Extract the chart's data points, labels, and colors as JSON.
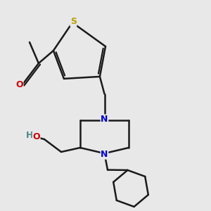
{
  "background_color": "#e8e8e8",
  "bond_color": "#1a1a1a",
  "S_color": "#b8a000",
  "O_color": "#cc0000",
  "N_color": "#0000cc",
  "H_color": "#4a8888",
  "line_width": 1.8,
  "figsize": [
    3.0,
    3.0
  ],
  "dpi": 100,
  "xlim": [
    0,
    10
  ],
  "ylim": [
    0,
    10
  ]
}
